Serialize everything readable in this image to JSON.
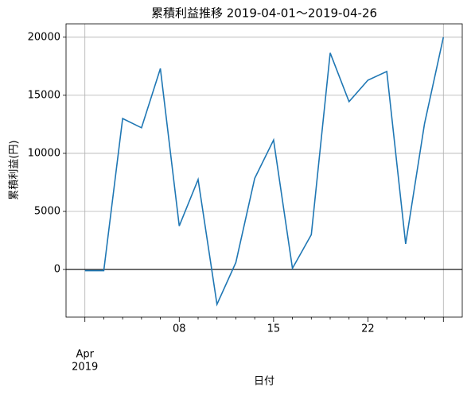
{
  "chart_data": {
    "type": "line",
    "title": "累積利益推移  2019-04-01〜2019-04-26",
    "xlabel": "日付",
    "ylabel": "累積利益(円)",
    "month_label": "Apr",
    "year_label": "2019",
    "categories": [
      null,
      null,
      null,
      null,
      null,
      "08",
      null,
      null,
      null,
      null,
      "15",
      null,
      null,
      null,
      null,
      "22",
      null,
      null,
      null,
      null
    ],
    "series": [
      {
        "name": "累積利益",
        "color": "#1f77b4",
        "values": [
          -100,
          -100,
          13000,
          12200,
          17300,
          3750,
          7750,
          -3000,
          600,
          7850,
          11150,
          100,
          3000,
          18650,
          14450,
          16300,
          17050,
          2200,
          12550,
          20000
        ]
      }
    ],
    "ylim": [
      -4100,
      21150
    ],
    "yticks": [
      0,
      5000,
      10000,
      15000,
      20000
    ],
    "grid": true,
    "zero_line": true
  }
}
